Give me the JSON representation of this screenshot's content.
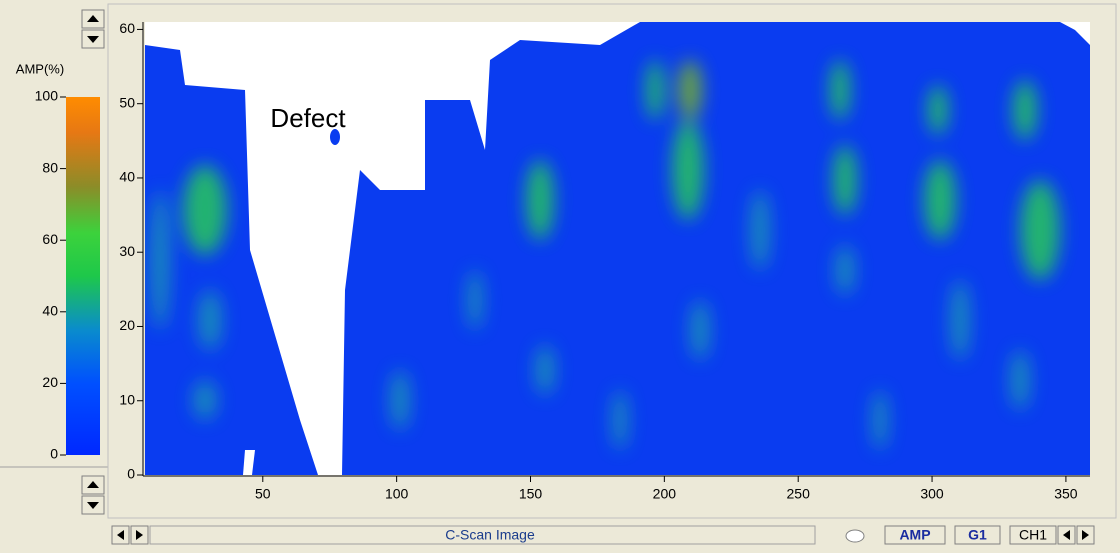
{
  "colorbar": {
    "title": "AMP(%)",
    "ticks": [
      0,
      20,
      40,
      60,
      80,
      100
    ],
    "range": [
      0,
      100
    ]
  },
  "plot": {
    "xlim": [
      6,
      359
    ],
    "ylim": [
      0,
      61
    ],
    "xticks": [
      50,
      100,
      150,
      200,
      250,
      300,
      350
    ],
    "yticks": [
      0,
      10,
      20,
      30,
      40,
      50,
      60
    ],
    "annotation": "Defect"
  },
  "statusbar": {
    "title": "C-Scan Image",
    "buttons": [
      "AMP",
      "G1",
      "CH1"
    ]
  }
}
